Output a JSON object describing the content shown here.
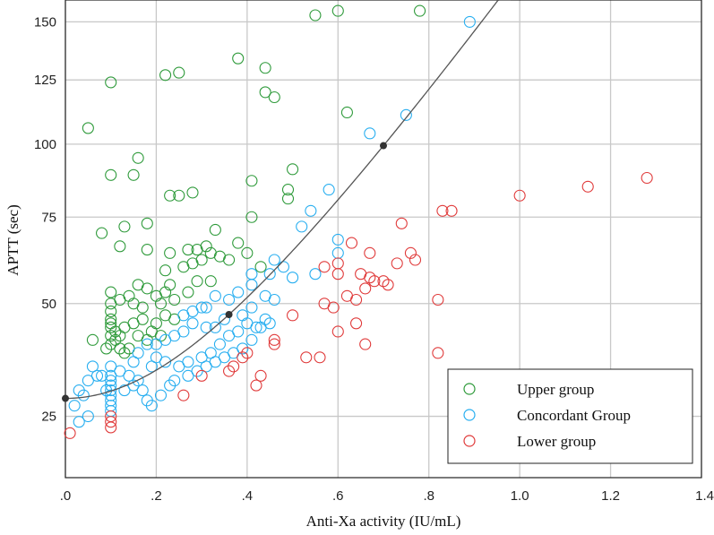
{
  "chart_data": {
    "type": "scatter",
    "title": "",
    "xlabel": "Anti-Xa activity (IU/mL)",
    "ylabel": "APTT (sec)",
    "xlim": [
      0.0,
      1.4
    ],
    "ylim": [
      15,
      160
    ],
    "y_scale": "sqrt",
    "grid": true,
    "x_ticks": [
      {
        "value": 0.0,
        "label": ".0"
      },
      {
        "value": 0.2,
        "label": ".2"
      },
      {
        "value": 0.4,
        "label": ".4"
      },
      {
        "value": 0.6,
        "label": ".6"
      },
      {
        "value": 0.8,
        "label": ".8"
      },
      {
        "value": 1.0,
        "label": "1.0"
      },
      {
        "value": 1.2,
        "label": "1.2"
      },
      {
        "value": 1.4,
        "label": "1.4"
      }
    ],
    "y_ticks": [
      {
        "value": 25,
        "label": "25"
      },
      {
        "value": 50,
        "label": "50"
      },
      {
        "value": 75,
        "label": "75"
      },
      {
        "value": 100,
        "label": "100"
      },
      {
        "value": 125,
        "label": "125"
      },
      {
        "value": 150,
        "label": "150"
      }
    ],
    "legend_position": "bottom-right",
    "series": [
      {
        "name": "Upper group",
        "color": "#2e9a3a",
        "points": [
          [
            0.05,
            106
          ],
          [
            0.1,
            89
          ],
          [
            0.1,
            124
          ],
          [
            0.15,
            89
          ],
          [
            0.16,
            95
          ],
          [
            0.22,
            127
          ],
          [
            0.25,
            128
          ],
          [
            0.38,
            134
          ],
          [
            0.44,
            130
          ],
          [
            0.44,
            120
          ],
          [
            0.46,
            118
          ],
          [
            0.55,
            153
          ],
          [
            0.6,
            155
          ],
          [
            0.78,
            155
          ],
          [
            0.62,
            112
          ],
          [
            0.5,
            91
          ],
          [
            0.49,
            84
          ],
          [
            0.49,
            81
          ],
          [
            0.41,
            87
          ],
          [
            0.28,
            83
          ],
          [
            0.23,
            82
          ],
          [
            0.25,
            82
          ],
          [
            0.41,
            75
          ],
          [
            0.33,
            71
          ],
          [
            0.38,
            67
          ],
          [
            0.36,
            62
          ],
          [
            0.4,
            64
          ],
          [
            0.43,
            60
          ],
          [
            0.08,
            70
          ],
          [
            0.13,
            72
          ],
          [
            0.18,
            73
          ],
          [
            0.12,
            66
          ],
          [
            0.18,
            65
          ],
          [
            0.23,
            64
          ],
          [
            0.27,
            65
          ],
          [
            0.29,
            65
          ],
          [
            0.31,
            66
          ],
          [
            0.32,
            64
          ],
          [
            0.34,
            63
          ],
          [
            0.28,
            61
          ],
          [
            0.3,
            62
          ],
          [
            0.22,
            59
          ],
          [
            0.26,
            60
          ],
          [
            0.29,
            56
          ],
          [
            0.32,
            56
          ],
          [
            0.16,
            55
          ],
          [
            0.18,
            54
          ],
          [
            0.2,
            52
          ],
          [
            0.22,
            53
          ],
          [
            0.24,
            51
          ],
          [
            0.14,
            52
          ],
          [
            0.1,
            53
          ],
          [
            0.12,
            51
          ],
          [
            0.15,
            50
          ],
          [
            0.17,
            49
          ],
          [
            0.1,
            50
          ],
          [
            0.1,
            48
          ],
          [
            0.1,
            46
          ],
          [
            0.1,
            45
          ],
          [
            0.1,
            44
          ],
          [
            0.11,
            43
          ],
          [
            0.12,
            42
          ],
          [
            0.13,
            44
          ],
          [
            0.15,
            45
          ],
          [
            0.17,
            46
          ],
          [
            0.2,
            45
          ],
          [
            0.22,
            47
          ],
          [
            0.24,
            46
          ],
          [
            0.19,
            43
          ],
          [
            0.21,
            42
          ],
          [
            0.18,
            41
          ],
          [
            0.16,
            42
          ],
          [
            0.11,
            41
          ],
          [
            0.12,
            39
          ],
          [
            0.13,
            38
          ],
          [
            0.14,
            39
          ],
          [
            0.1,
            40
          ],
          [
            0.1,
            42
          ],
          [
            0.06,
            41
          ],
          [
            0.09,
            39
          ],
          [
            0.21,
            50
          ],
          [
            0.23,
            55
          ],
          [
            0.27,
            53
          ]
        ]
      },
      {
        "name": "Concordant Group",
        "color": "#27aef0",
        "points": [
          [
            0.89,
            150
          ],
          [
            0.75,
            111
          ],
          [
            0.67,
            104
          ],
          [
            0.58,
            84
          ],
          [
            0.54,
            77
          ],
          [
            0.52,
            72
          ],
          [
            0.6,
            68
          ],
          [
            0.6,
            64
          ],
          [
            0.55,
            58
          ],
          [
            0.5,
            57
          ],
          [
            0.48,
            60
          ],
          [
            0.46,
            62
          ],
          [
            0.45,
            58
          ],
          [
            0.41,
            58
          ],
          [
            0.41,
            55
          ],
          [
            0.38,
            53
          ],
          [
            0.36,
            51
          ],
          [
            0.33,
            52
          ],
          [
            0.31,
            49
          ],
          [
            0.3,
            49
          ],
          [
            0.28,
            48
          ],
          [
            0.26,
            47
          ],
          [
            0.44,
            52
          ],
          [
            0.46,
            51
          ],
          [
            0.41,
            49
          ],
          [
            0.39,
            47
          ],
          [
            0.35,
            46
          ],
          [
            0.33,
            44
          ],
          [
            0.31,
            44
          ],
          [
            0.28,
            45
          ],
          [
            0.26,
            43
          ],
          [
            0.24,
            42
          ],
          [
            0.22,
            41
          ],
          [
            0.2,
            40
          ],
          [
            0.18,
            40
          ],
          [
            0.16,
            38
          ],
          [
            0.15,
            36
          ],
          [
            0.12,
            34
          ],
          [
            0.1,
            35
          ],
          [
            0.1,
            33
          ],
          [
            0.1,
            32
          ],
          [
            0.1,
            31
          ],
          [
            0.1,
            30
          ],
          [
            0.1,
            29
          ],
          [
            0.1,
            28
          ],
          [
            0.1,
            27
          ],
          [
            0.1,
            26
          ],
          [
            0.08,
            33
          ],
          [
            0.06,
            35
          ],
          [
            0.05,
            32
          ],
          [
            0.04,
            29
          ],
          [
            0.03,
            30
          ],
          [
            0.02,
            27
          ],
          [
            0.03,
            24
          ],
          [
            0.05,
            25
          ],
          [
            0.07,
            33
          ],
          [
            0.09,
            30
          ],
          [
            0.13,
            30
          ],
          [
            0.15,
            31
          ],
          [
            0.17,
            30
          ],
          [
            0.18,
            28
          ],
          [
            0.19,
            27
          ],
          [
            0.21,
            29
          ],
          [
            0.23,
            31
          ],
          [
            0.24,
            32
          ],
          [
            0.27,
            33
          ],
          [
            0.29,
            34
          ],
          [
            0.31,
            35
          ],
          [
            0.33,
            36
          ],
          [
            0.35,
            37
          ],
          [
            0.37,
            38
          ],
          [
            0.39,
            39
          ],
          [
            0.41,
            41
          ],
          [
            0.43,
            44
          ],
          [
            0.45,
            45
          ],
          [
            0.2,
            37
          ],
          [
            0.22,
            36
          ],
          [
            0.25,
            35
          ],
          [
            0.27,
            36
          ],
          [
            0.3,
            37
          ],
          [
            0.32,
            38
          ],
          [
            0.34,
            40
          ],
          [
            0.36,
            42
          ],
          [
            0.38,
            43
          ],
          [
            0.4,
            45
          ],
          [
            0.42,
            44
          ],
          [
            0.44,
            46
          ],
          [
            0.16,
            32
          ],
          [
            0.14,
            33
          ],
          [
            0.19,
            35
          ]
        ]
      },
      {
        "name": "Lower group",
        "color": "#e03a3a",
        "points": [
          [
            1.28,
            88
          ],
          [
            1.15,
            85
          ],
          [
            1.0,
            82
          ],
          [
            0.85,
            77
          ],
          [
            0.83,
            77
          ],
          [
            0.74,
            73
          ],
          [
            0.63,
            67
          ],
          [
            0.67,
            64
          ],
          [
            0.76,
            64
          ],
          [
            0.77,
            62
          ],
          [
            0.73,
            61
          ],
          [
            0.6,
            61
          ],
          [
            0.57,
            60
          ],
          [
            0.6,
            58
          ],
          [
            0.65,
            58
          ],
          [
            0.67,
            57
          ],
          [
            0.68,
            56
          ],
          [
            0.7,
            56
          ],
          [
            0.71,
            55
          ],
          [
            0.66,
            54
          ],
          [
            0.62,
            52
          ],
          [
            0.64,
            51
          ],
          [
            0.59,
            49
          ],
          [
            0.82,
            51
          ],
          [
            0.57,
            50
          ],
          [
            0.5,
            47
          ],
          [
            0.64,
            45
          ],
          [
            0.6,
            43
          ],
          [
            0.66,
            40
          ],
          [
            0.46,
            41
          ],
          [
            0.46,
            40
          ],
          [
            0.4,
            38
          ],
          [
            0.39,
            37
          ],
          [
            0.53,
            37
          ],
          [
            0.56,
            37
          ],
          [
            0.82,
            38
          ],
          [
            0.37,
            35
          ],
          [
            0.36,
            34
          ],
          [
            0.43,
            33
          ],
          [
            0.3,
            33
          ],
          [
            0.42,
            31
          ],
          [
            0.26,
            29
          ],
          [
            0.1,
            25
          ],
          [
            0.1,
            24
          ],
          [
            0.1,
            23
          ],
          [
            0.01,
            22
          ]
        ]
      }
    ],
    "fit_curve": {
      "color": "#555555",
      "intercept": 28.4,
      "coef": 145,
      "markers": [
        0.0,
        0.36,
        0.7
      ]
    }
  }
}
